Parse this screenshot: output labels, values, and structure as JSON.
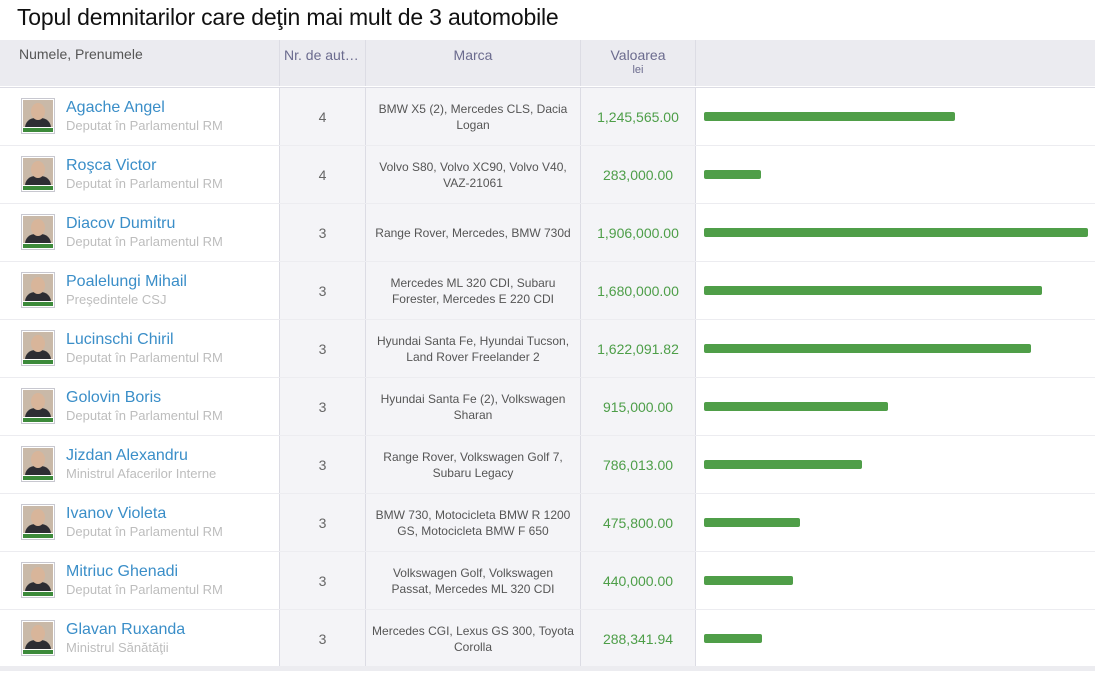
{
  "title": "Topul demnitarilor care deţin mai mult de 3 automobile",
  "header": {
    "name": "Numele, Prenumele",
    "count": "Nr. de automobile",
    "make": "Marca",
    "value": "Valoarea",
    "value_unit": "lei"
  },
  "colors": {
    "link": "#3a8ec8",
    "value": "#4d9e48",
    "bar": "#4f9e48"
  },
  "max_value": 1906000.0,
  "rows": [
    {
      "name": "Agache Angel",
      "role": "Deputat în Parlamentul RM",
      "count": "4",
      "make": "BMW X5 (2), Mercedes CLS, Dacia Logan",
      "value": "1,245,565.00",
      "amount": 1245565.0
    },
    {
      "name": "Roşca Victor",
      "role": "Deputat în Parlamentul RM",
      "count": "4",
      "make": "Volvo S80, Volvo XC90, Volvo V40, VAZ-21061",
      "value": "283,000.00",
      "amount": 283000.0
    },
    {
      "name": "Diacov Dumitru",
      "role": "Deputat în Parlamentul RM",
      "count": "3",
      "make": "Range Rover, Mercedes, BMW 730d",
      "value": "1,906,000.00",
      "amount": 1906000.0
    },
    {
      "name": "Poalelungi Mihail",
      "role": "Preşedintele CSJ",
      "count": "3",
      "make": "Mercedes ML 320 CDI, Subaru Forester, Mercedes E 220 CDI",
      "value": "1,680,000.00",
      "amount": 1680000.0
    },
    {
      "name": "Lucinschi Chiril",
      "role": "Deputat în Parlamentul RM",
      "count": "3",
      "make": "Hyundai Santa Fe, Hyundai Tucson, Land Rover Freelander 2",
      "value": "1,622,091.82",
      "amount": 1622091.82
    },
    {
      "name": "Golovin Boris",
      "role": "Deputat în Parlamentul RM",
      "count": "3",
      "make": "Hyundai Santa Fe (2), Volkswagen Sharan",
      "value": "915,000.00",
      "amount": 915000.0
    },
    {
      "name": "Jizdan Alexandru",
      "role": "Ministrul Afacerilor Interne",
      "count": "3",
      "make": "Range Rover, Volkswagen Golf 7, Subaru Legacy",
      "value": "786,013.00",
      "amount": 786013.0
    },
    {
      "name": "Ivanov Violeta",
      "role": "Deputat în Parlamentul RM",
      "count": "3",
      "make": "BMW 730, Motocicleta BMW R 1200 GS, Motocicleta BMW F 650",
      "value": "475,800.00",
      "amount": 475800.0
    },
    {
      "name": "Mitriuc Ghenadi",
      "role": "Deputat în Parlamentul RM",
      "count": "3",
      "make": "Volkswagen Golf, Volkswagen Passat, Mercedes ML 320 CDI",
      "value": "440,000.00",
      "amount": 440000.0
    },
    {
      "name": "Glavan Ruxanda",
      "role": "Ministrul Sănătăţii",
      "count": "3",
      "make": "Mercedes CGI, Lexus GS 300, Toyota Corolla",
      "value": "288,341.94",
      "amount": 288341.94
    }
  ]
}
